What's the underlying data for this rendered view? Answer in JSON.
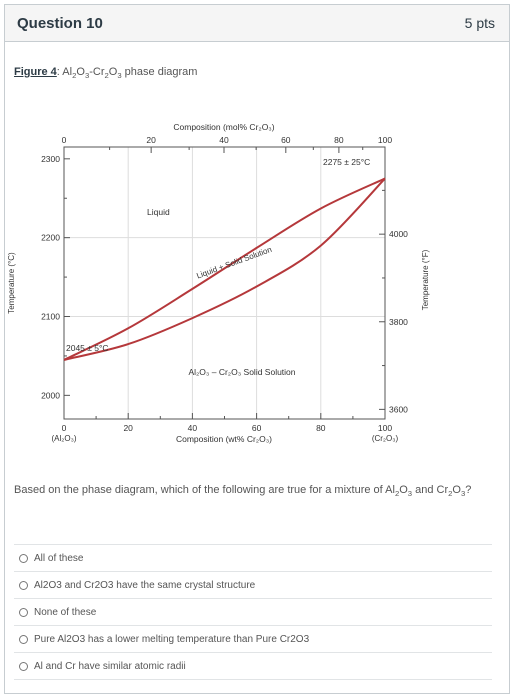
{
  "question": {
    "title": "Question 10",
    "points": "5 pts"
  },
  "figure": {
    "label": "Figure 4",
    "caption_pre": ": Al",
    "caption_mid1": "O",
    "caption_mid2": "-Cr",
    "caption_mid3": "O",
    "caption_post": " phase diagram"
  },
  "prompt": {
    "line": "Based on the phase diagram, which of the following are true for a mixture of Al",
    "and": " and ",
    "end": "?"
  },
  "answers": [
    "All of these",
    "Al2O3 and Cr2O3 have the same crystal structure",
    "None of these",
    "Pure Al2O3 has a lower melting temperature than Pure Cr2O3",
    "Al and Cr have similar atomic radii"
  ],
  "chart_data": {
    "type": "line",
    "top_axis_title": "Composition (mol% Cr₂O₃)",
    "top_ticks": [
      "0",
      "20",
      "40",
      "60",
      "80",
      "100"
    ],
    "bottom_axis_title": "Composition (wt% Cr₂O₃)",
    "bottom_ticks": [
      "0",
      "20",
      "40",
      "60",
      "80",
      "100"
    ],
    "bottom_end_labels": [
      "(Al₂O₃)",
      "(Cr₂O₃)"
    ],
    "left_axis_title": "Temperature (°C)",
    "left_ticks": [
      "2300",
      "2200",
      "2100",
      "2000"
    ],
    "right_axis_title": "Temperature (°F)",
    "right_ticks": [
      "4000",
      "3800",
      "3600"
    ],
    "ylim_c": [
      1970,
      2315
    ],
    "xlim_wt": [
      0,
      100
    ],
    "annotations": {
      "liquid": "Liquid",
      "two_phase": "Liquid + Solid Solution",
      "solid": "Al₂O₃ – Cr₂O₃ Solid Solution",
      "mp_al": "2045 ± 5°C",
      "mp_cr": "2275 ± 25°C"
    },
    "series": [
      {
        "name": "liquidus",
        "x": [
          0,
          20,
          40,
          60,
          80,
          100
        ],
        "y": [
          2045,
          2085,
          2135,
          2187,
          2237,
          2275
        ]
      },
      {
        "name": "solidus",
        "x": [
          0,
          20,
          40,
          60,
          80,
          100
        ],
        "y": [
          2045,
          2065,
          2098,
          2138,
          2190,
          2275
        ]
      }
    ],
    "colors": {
      "curve": "#b5383b",
      "axis": "#555555",
      "grid": "#dddddd"
    }
  }
}
